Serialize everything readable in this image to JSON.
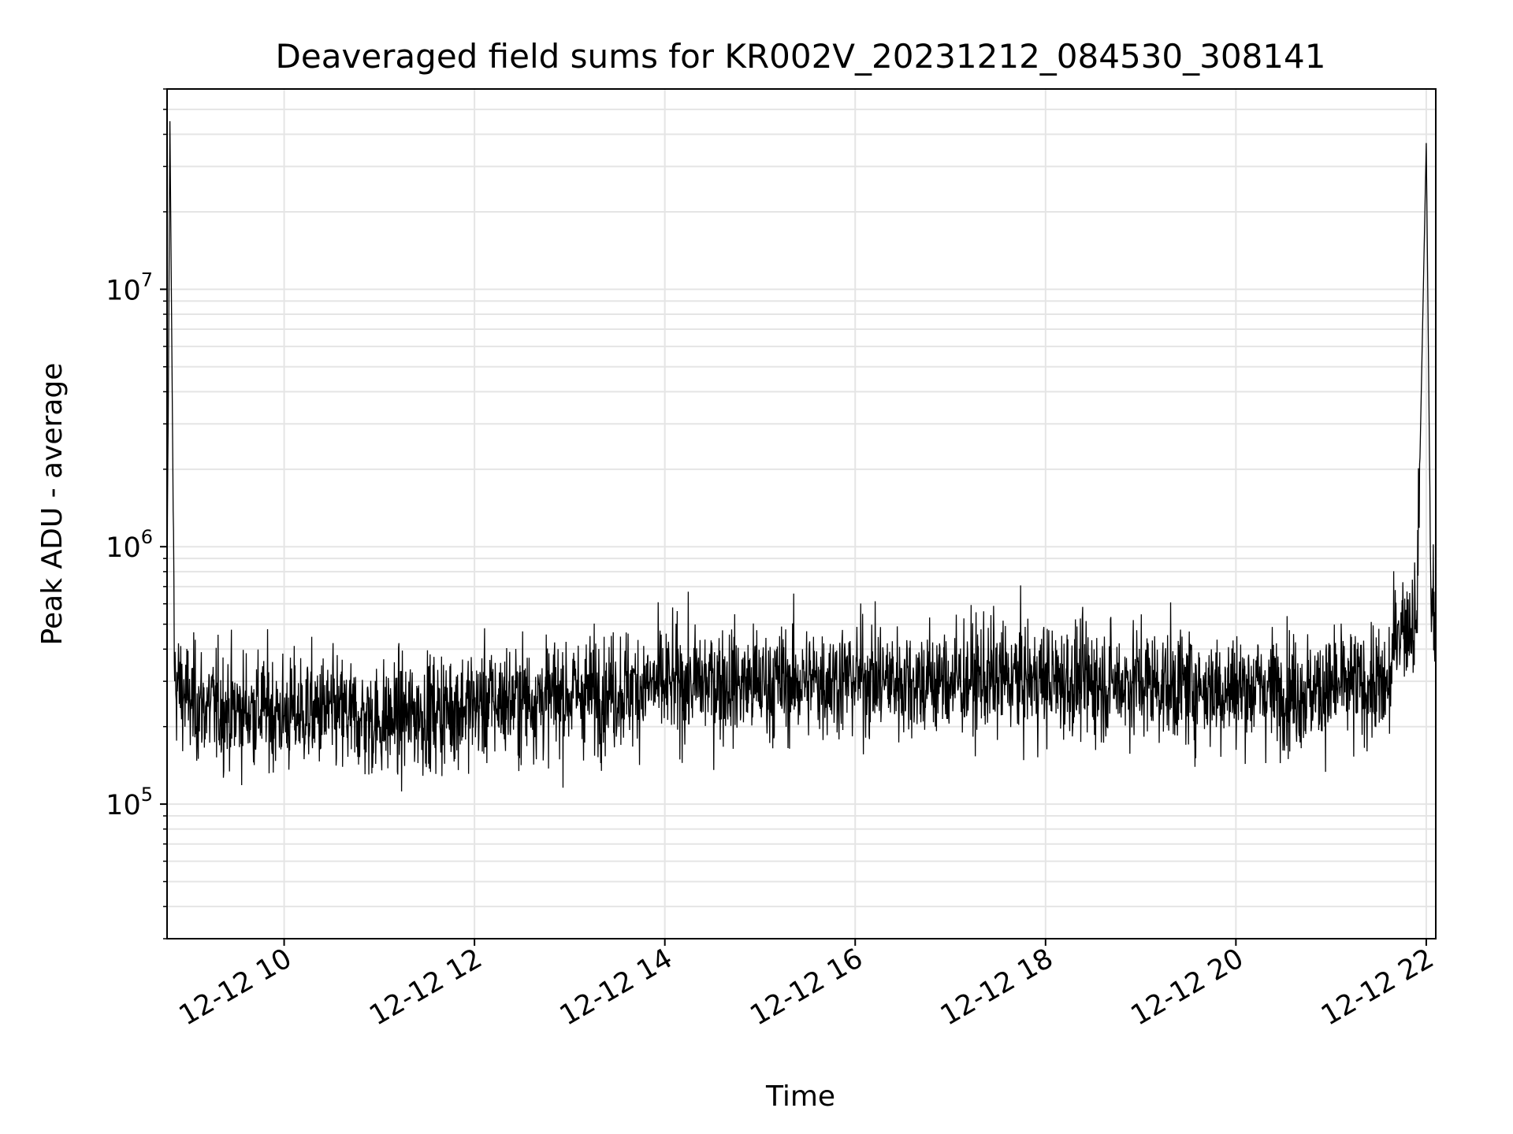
{
  "chart_data": {
    "type": "line",
    "title": "Deaveraged field sums for KR002V_20231212_084530_308141",
    "xlabel": "Time",
    "ylabel": "Peak ADU - average",
    "y_scale": "log",
    "ylim": [
      30000,
      60000000
    ],
    "xlim_hours": [
      8.77,
      22.1
    ],
    "grid": true,
    "series_color": "#000000",
    "grid_color": "#e5e5e5",
    "x_ticks": [
      {
        "hour": 10,
        "label": "12-12 10"
      },
      {
        "hour": 12,
        "label": "12-12 12"
      },
      {
        "hour": 14,
        "label": "12-12 14"
      },
      {
        "hour": 16,
        "label": "12-12 16"
      },
      {
        "hour": 18,
        "label": "12-12 18"
      },
      {
        "hour": 20,
        "label": "12-12 20"
      },
      {
        "hour": 22,
        "label": "12-12 22"
      }
    ],
    "y_ticks": [
      {
        "value": 100000,
        "base": "10",
        "exp": "5"
      },
      {
        "value": 1000000,
        "base": "10",
        "exp": "6"
      },
      {
        "value": 10000000,
        "base": "10",
        "exp": "7"
      }
    ],
    "series": [
      {
        "name": "Peak ADU - average",
        "x_hours": [
          8.77,
          8.8,
          8.85,
          9.0,
          9.2,
          9.5,
          9.8,
          10.0,
          10.2,
          10.5,
          10.8,
          11.0,
          11.3,
          11.6,
          11.9,
          12.2,
          12.5,
          12.8,
          13.1,
          13.4,
          13.7,
          14.0,
          14.3,
          14.6,
          14.9,
          15.2,
          15.5,
          15.8,
          16.0,
          16.3,
          16.6,
          16.9,
          17.2,
          17.5,
          17.8,
          18.1,
          18.4,
          18.7,
          19.0,
          19.3,
          19.6,
          19.9,
          20.2,
          20.5,
          20.8,
          21.1,
          21.4,
          21.6,
          21.7,
          21.9,
          22.0,
          22.05,
          22.1
        ],
        "values": [
          500000,
          45000000,
          300000,
          250000,
          240000,
          230000,
          235000,
          220000,
          230000,
          225000,
          215000,
          210000,
          220000,
          230000,
          240000,
          250000,
          255000,
          260000,
          270000,
          275000,
          285000,
          290000,
          295000,
          300000,
          290000,
          295000,
          300000,
          305000,
          310000,
          305000,
          300000,
          300000,
          305000,
          310000,
          305000,
          300000,
          300000,
          295000,
          300000,
          290000,
          285000,
          280000,
          285000,
          280000,
          275000,
          285000,
          290000,
          280000,
          500000,
          520000,
          37000000,
          600000,
          550000
        ]
      }
    ]
  }
}
